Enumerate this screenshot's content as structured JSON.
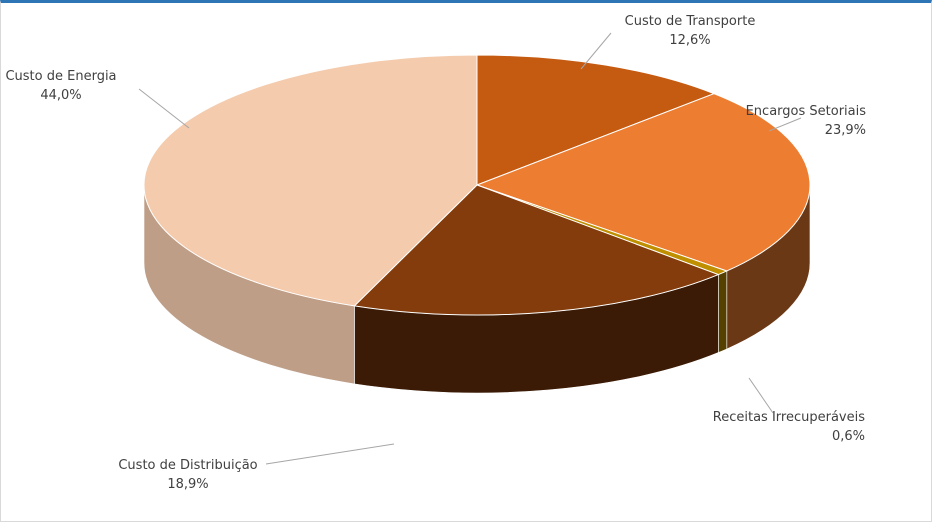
{
  "chart_data": {
    "type": "pie",
    "style": "3d",
    "legend": "none",
    "slices": [
      {
        "label": "Custo de Transporte",
        "value": 12.6,
        "display": "12,6%",
        "color": "#c55a11"
      },
      {
        "label": "Encargos Setoriais",
        "value": 23.9,
        "display": "23,9%",
        "color": "#ed7d31"
      },
      {
        "label": "Receitas Irrecuperáveis",
        "value": 0.6,
        "display": "0,6%",
        "color": "#bf8f00"
      },
      {
        "label": "Custo de Distribuição",
        "value": 18.9,
        "display": "18,9%",
        "color": "#843c0c"
      },
      {
        "label": "Custo de Energia",
        "value": 44.0,
        "display": "44,0%",
        "color": "#f4cbad"
      }
    ]
  }
}
